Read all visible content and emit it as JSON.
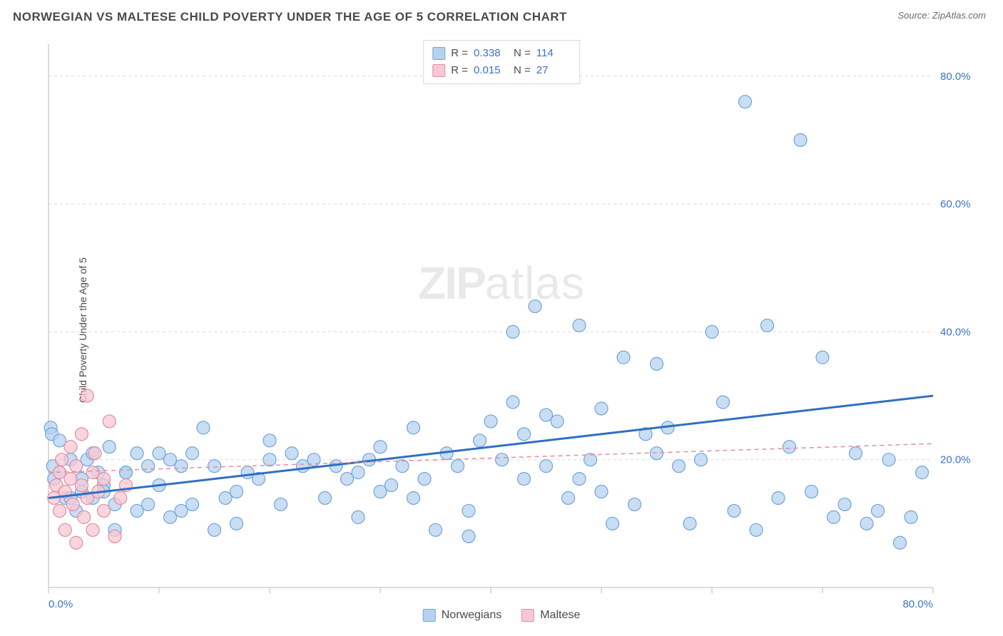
{
  "header": {
    "title": "NORWEGIAN VS MALTESE CHILD POVERTY UNDER THE AGE OF 5 CORRELATION CHART",
    "source_prefix": "Source: ",
    "source_name": "ZipAtlas.com"
  },
  "watermark": {
    "zip": "ZIP",
    "atlas": "atlas"
  },
  "chart": {
    "type": "scatter",
    "ylabel": "Child Poverty Under the Age of 5",
    "xlim": [
      0,
      80
    ],
    "ylim": [
      0,
      85
    ],
    "xtick_values": [
      0,
      10,
      20,
      30,
      40,
      50,
      60,
      70,
      80
    ],
    "xtick_labels": [
      "0.0%",
      "",
      "",
      "",
      "",
      "",
      "",
      "",
      "80.0%"
    ],
    "ytick_values": [
      20,
      40,
      60,
      80
    ],
    "ytick_labels": [
      "20.0%",
      "40.0%",
      "60.0%",
      "80.0%"
    ],
    "grid_color": "#d8d8d8",
    "axis_color": "#cfcfcf",
    "background_color": "#ffffff",
    "label_fontsize": 14,
    "tick_fontsize": 15,
    "tick_label_color": "#3a74c4",
    "marker_radius": 9,
    "marker_stroke_width": 1.2,
    "series": [
      {
        "name": "Norwegians",
        "fill": "#b7d2ef",
        "stroke": "#6ea4dd",
        "trend": {
          "x0": 0,
          "y0": 14,
          "x1": 80,
          "y1": 30,
          "color": "#2f6fc2",
          "width": 3,
          "dash": ""
        },
        "points": [
          [
            0.2,
            25
          ],
          [
            0.3,
            24
          ],
          [
            0.4,
            19
          ],
          [
            0.5,
            17
          ],
          [
            1,
            18
          ],
          [
            1,
            23
          ],
          [
            1.5,
            14
          ],
          [
            2,
            14
          ],
          [
            2,
            20
          ],
          [
            2.5,
            12
          ],
          [
            3,
            15
          ],
          [
            3,
            17
          ],
          [
            3.5,
            20
          ],
          [
            4,
            14
          ],
          [
            4,
            21
          ],
          [
            4.5,
            18
          ],
          [
            5,
            16
          ],
          [
            5,
            15
          ],
          [
            5.5,
            22
          ],
          [
            6,
            13
          ],
          [
            6,
            9
          ],
          [
            7,
            18
          ],
          [
            7,
            18
          ],
          [
            8,
            21
          ],
          [
            8,
            12
          ],
          [
            9,
            13
          ],
          [
            9,
            19
          ],
          [
            10,
            16
          ],
          [
            10,
            21
          ],
          [
            11,
            20
          ],
          [
            11,
            11
          ],
          [
            12,
            12
          ],
          [
            12,
            19
          ],
          [
            13,
            21
          ],
          [
            13,
            13
          ],
          [
            14,
            25
          ],
          [
            15,
            9
          ],
          [
            15,
            19
          ],
          [
            16,
            14
          ],
          [
            17,
            15
          ],
          [
            17,
            10
          ],
          [
            18,
            18
          ],
          [
            19,
            17
          ],
          [
            20,
            23
          ],
          [
            20,
            20
          ],
          [
            21,
            13
          ],
          [
            22,
            21
          ],
          [
            23,
            19
          ],
          [
            24,
            20
          ],
          [
            25,
            14
          ],
          [
            26,
            19
          ],
          [
            27,
            17
          ],
          [
            28,
            18
          ],
          [
            29,
            20
          ],
          [
            30,
            22
          ],
          [
            30,
            15
          ],
          [
            31,
            16
          ],
          [
            32,
            19
          ],
          [
            33,
            14
          ],
          [
            34,
            17
          ],
          [
            35,
            9
          ],
          [
            36,
            21
          ],
          [
            37,
            19
          ],
          [
            38,
            12
          ],
          [
            39,
            23
          ],
          [
            40,
            26
          ],
          [
            41,
            20
          ],
          [
            42,
            29
          ],
          [
            42,
            40
          ],
          [
            43,
            17
          ],
          [
            44,
            44
          ],
          [
            45,
            19
          ],
          [
            45,
            27
          ],
          [
            46,
            26
          ],
          [
            47,
            14
          ],
          [
            48,
            41
          ],
          [
            49,
            20
          ],
          [
            50,
            15
          ],
          [
            50,
            28
          ],
          [
            51,
            10
          ],
          [
            52,
            36
          ],
          [
            53,
            13
          ],
          [
            54,
            24
          ],
          [
            55,
            21
          ],
          [
            56,
            25
          ],
          [
            57,
            19
          ],
          [
            58,
            10
          ],
          [
            59,
            20
          ],
          [
            60,
            40
          ],
          [
            61,
            29
          ],
          [
            62,
            12
          ],
          [
            63,
            76
          ],
          [
            64,
            9
          ],
          [
            65,
            41
          ],
          [
            66,
            14
          ],
          [
            67,
            22
          ],
          [
            68,
            70
          ],
          [
            69,
            15
          ],
          [
            70,
            36
          ],
          [
            71,
            11
          ],
          [
            72,
            13
          ],
          [
            73,
            21
          ],
          [
            74,
            10
          ],
          [
            75,
            12
          ],
          [
            76,
            20
          ],
          [
            77,
            7
          ],
          [
            78,
            11
          ],
          [
            79,
            18
          ],
          [
            55,
            35
          ],
          [
            48,
            17
          ],
          [
            43,
            24
          ],
          [
            38,
            8
          ],
          [
            33,
            25
          ],
          [
            28,
            11
          ]
        ]
      },
      {
        "name": "Maltese",
        "fill": "#f7c8d3",
        "stroke": "#e48ba2",
        "trend": {
          "x0": 0,
          "y0": 18,
          "x1": 80,
          "y1": 22.5,
          "color": "#e28da3",
          "width": 1.5,
          "dash": "6 5"
        },
        "points": [
          [
            0.5,
            14
          ],
          [
            0.7,
            16
          ],
          [
            1,
            18
          ],
          [
            1,
            12
          ],
          [
            1.2,
            20
          ],
          [
            1.5,
            15
          ],
          [
            1.5,
            9
          ],
          [
            2,
            17
          ],
          [
            2,
            22
          ],
          [
            2.2,
            13
          ],
          [
            2.5,
            19
          ],
          [
            2.5,
            7
          ],
          [
            3,
            16
          ],
          [
            3,
            24
          ],
          [
            3.2,
            11
          ],
          [
            3.5,
            14
          ],
          [
            3.5,
            30
          ],
          [
            4,
            18
          ],
          [
            4,
            9
          ],
          [
            4.2,
            21
          ],
          [
            4.5,
            15
          ],
          [
            5,
            17
          ],
          [
            5,
            12
          ],
          [
            5.5,
            26
          ],
          [
            6,
            8
          ],
          [
            6.5,
            14
          ],
          [
            7,
            16
          ]
        ]
      }
    ]
  },
  "stats_legend": {
    "rows": [
      {
        "swatch_fill": "#b7d2ef",
        "swatch_stroke": "#6ea4dd",
        "r_label": "R =",
        "r_val": "0.338",
        "n_label": "N =",
        "n_val": "114"
      },
      {
        "swatch_fill": "#f7c8d3",
        "swatch_stroke": "#e48ba2",
        "r_label": "R =",
        "r_val": "0.015",
        "n_label": "N =",
        "n_val": " 27"
      }
    ]
  },
  "bottom_legend": {
    "items": [
      {
        "swatch_fill": "#b7d2ef",
        "swatch_stroke": "#6ea4dd",
        "label": "Norwegians"
      },
      {
        "swatch_fill": "#f7c8d3",
        "swatch_stroke": "#e48ba2",
        "label": "Maltese"
      }
    ]
  }
}
